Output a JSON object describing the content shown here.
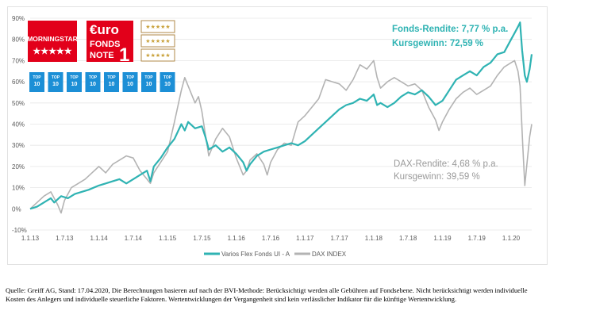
{
  "chart_data": {
    "type": "line",
    "title": "",
    "xlabel": "",
    "ylabel": "",
    "ylim": [
      -10,
      90
    ],
    "grid": true,
    "legend_position": "bottom",
    "y_ticks": [
      -10,
      0,
      10,
      20,
      30,
      40,
      50,
      60,
      70,
      80,
      90
    ],
    "y_tick_labels": [
      "-10%",
      "0%",
      "10%",
      "20%",
      "30%",
      "40%",
      "50%",
      "60%",
      "70%",
      "80%",
      "90%"
    ],
    "x_tick_labels": [
      "1.1.13",
      "1.7.13",
      "1.1.14",
      "1.7.14",
      "1.1.15",
      "1.7.15",
      "1.1.16",
      "1.7.16",
      "1.1.17",
      "1.7.17",
      "1.1.18",
      "1.7.18",
      "1.1.19",
      "1.7.19",
      "1.1.20"
    ],
    "x_ticks": [
      2013.0,
      2013.5,
      2014.0,
      2014.5,
      2015.0,
      2015.5,
      2016.0,
      2016.5,
      2017.0,
      2017.5,
      2018.0,
      2018.5,
      2019.0,
      2019.5,
      2020.0
    ],
    "xlim": [
      2013.0,
      2020.3
    ],
    "series": [
      {
        "name": "Varios Flex Fonds UI - A",
        "color": "#2fb3b3",
        "points": [
          [
            2013.0,
            0
          ],
          [
            2013.1,
            1
          ],
          [
            2013.2,
            3
          ],
          [
            2013.3,
            5
          ],
          [
            2013.35,
            3
          ],
          [
            2013.45,
            6
          ],
          [
            2013.55,
            5
          ],
          [
            2013.65,
            7
          ],
          [
            2013.75,
            8
          ],
          [
            2013.85,
            9
          ],
          [
            2014.0,
            11
          ],
          [
            2014.1,
            12
          ],
          [
            2014.2,
            13
          ],
          [
            2014.3,
            14
          ],
          [
            2014.4,
            12
          ],
          [
            2014.5,
            14
          ],
          [
            2014.6,
            16
          ],
          [
            2014.7,
            18
          ],
          [
            2014.75,
            13
          ],
          [
            2014.8,
            20
          ],
          [
            2014.9,
            24
          ],
          [
            2015.0,
            29
          ],
          [
            2015.1,
            33
          ],
          [
            2015.2,
            40
          ],
          [
            2015.25,
            37
          ],
          [
            2015.3,
            41
          ],
          [
            2015.4,
            38
          ],
          [
            2015.5,
            39
          ],
          [
            2015.55,
            34
          ],
          [
            2015.6,
            28
          ],
          [
            2015.7,
            30
          ],
          [
            2015.8,
            27
          ],
          [
            2015.9,
            29
          ],
          [
            2016.0,
            26
          ],
          [
            2016.1,
            22
          ],
          [
            2016.15,
            18
          ],
          [
            2016.2,
            21
          ],
          [
            2016.3,
            25
          ],
          [
            2016.4,
            27
          ],
          [
            2016.5,
            28
          ],
          [
            2016.6,
            29
          ],
          [
            2016.7,
            30
          ],
          [
            2016.8,
            31
          ],
          [
            2016.9,
            30
          ],
          [
            2017.0,
            32
          ],
          [
            2017.1,
            35
          ],
          [
            2017.2,
            38
          ],
          [
            2017.3,
            41
          ],
          [
            2017.4,
            44
          ],
          [
            2017.5,
            47
          ],
          [
            2017.6,
            49
          ],
          [
            2017.7,
            50
          ],
          [
            2017.8,
            52
          ],
          [
            2017.9,
            51
          ],
          [
            2018.0,
            54
          ],
          [
            2018.05,
            49
          ],
          [
            2018.1,
            50
          ],
          [
            2018.2,
            48
          ],
          [
            2018.3,
            50
          ],
          [
            2018.4,
            53
          ],
          [
            2018.5,
            55
          ],
          [
            2018.6,
            54
          ],
          [
            2018.7,
            56
          ],
          [
            2018.8,
            53
          ],
          [
            2018.9,
            49
          ],
          [
            2019.0,
            51
          ],
          [
            2019.1,
            56
          ],
          [
            2019.2,
            61
          ],
          [
            2019.3,
            63
          ],
          [
            2019.4,
            65
          ],
          [
            2019.5,
            63
          ],
          [
            2019.6,
            67
          ],
          [
            2019.7,
            69
          ],
          [
            2019.8,
            73
          ],
          [
            2019.9,
            74
          ],
          [
            2020.0,
            80
          ],
          [
            2020.05,
            83
          ],
          [
            2020.1,
            86
          ],
          [
            2020.13,
            88
          ],
          [
            2020.16,
            75
          ],
          [
            2020.2,
            63
          ],
          [
            2020.23,
            60
          ],
          [
            2020.27,
            66
          ],
          [
            2020.3,
            73
          ]
        ]
      },
      {
        "name": "DAX INDEX",
        "color": "#b3b3b3",
        "points": [
          [
            2013.0,
            0
          ],
          [
            2013.1,
            3
          ],
          [
            2013.2,
            6
          ],
          [
            2013.3,
            8
          ],
          [
            2013.4,
            2
          ],
          [
            2013.45,
            -2
          ],
          [
            2013.5,
            4
          ],
          [
            2013.6,
            10
          ],
          [
            2013.7,
            12
          ],
          [
            2013.8,
            14
          ],
          [
            2013.9,
            17
          ],
          [
            2014.0,
            20
          ],
          [
            2014.1,
            17
          ],
          [
            2014.2,
            21
          ],
          [
            2014.3,
            23
          ],
          [
            2014.4,
            25
          ],
          [
            2014.5,
            24
          ],
          [
            2014.6,
            18
          ],
          [
            2014.7,
            14
          ],
          [
            2014.75,
            12
          ],
          [
            2014.8,
            17
          ],
          [
            2014.9,
            22
          ],
          [
            2015.0,
            27
          ],
          [
            2015.1,
            41
          ],
          [
            2015.2,
            56
          ],
          [
            2015.25,
            62
          ],
          [
            2015.3,
            58
          ],
          [
            2015.4,
            50
          ],
          [
            2015.45,
            53
          ],
          [
            2015.5,
            46
          ],
          [
            2015.55,
            35
          ],
          [
            2015.6,
            25
          ],
          [
            2015.7,
            33
          ],
          [
            2015.8,
            38
          ],
          [
            2015.9,
            34
          ],
          [
            2016.0,
            24
          ],
          [
            2016.1,
            16
          ],
          [
            2016.15,
            18
          ],
          [
            2016.2,
            23
          ],
          [
            2016.3,
            26
          ],
          [
            2016.4,
            21
          ],
          [
            2016.45,
            16
          ],
          [
            2016.5,
            22
          ],
          [
            2016.6,
            28
          ],
          [
            2016.7,
            31
          ],
          [
            2016.8,
            30
          ],
          [
            2016.9,
            41
          ],
          [
            2017.0,
            44
          ],
          [
            2017.1,
            48
          ],
          [
            2017.2,
            52
          ],
          [
            2017.3,
            61
          ],
          [
            2017.4,
            60
          ],
          [
            2017.5,
            59
          ],
          [
            2017.6,
            56
          ],
          [
            2017.7,
            61
          ],
          [
            2017.8,
            68
          ],
          [
            2017.9,
            66
          ],
          [
            2018.0,
            70
          ],
          [
            2018.05,
            62
          ],
          [
            2018.1,
            57
          ],
          [
            2018.2,
            60
          ],
          [
            2018.3,
            62
          ],
          [
            2018.4,
            60
          ],
          [
            2018.5,
            58
          ],
          [
            2018.6,
            59
          ],
          [
            2018.7,
            56
          ],
          [
            2018.8,
            48
          ],
          [
            2018.9,
            42
          ],
          [
            2018.95,
            37
          ],
          [
            2019.0,
            41
          ],
          [
            2019.1,
            47
          ],
          [
            2019.2,
            52
          ],
          [
            2019.3,
            55
          ],
          [
            2019.4,
            57
          ],
          [
            2019.5,
            54
          ],
          [
            2019.6,
            56
          ],
          [
            2019.7,
            58
          ],
          [
            2019.8,
            63
          ],
          [
            2019.9,
            67
          ],
          [
            2020.0,
            69
          ],
          [
            2020.05,
            70
          ],
          [
            2020.1,
            65
          ],
          [
            2020.13,
            58
          ],
          [
            2020.17,
            30
          ],
          [
            2020.2,
            11
          ],
          [
            2020.23,
            21
          ],
          [
            2020.27,
            34
          ],
          [
            2020.3,
            40
          ]
        ]
      }
    ],
    "annotations": [
      {
        "line1": "Fonds-Rendite: 7,77 % p.a.",
        "line2": "Kursgewinn: 72,59 %",
        "color": "#2fb3b3"
      },
      {
        "line1": "DAX-Rendite: 4,68 % p.a.",
        "line2": "Kursgewinn: 39,59 %",
        "color": "#9a9a9a"
      }
    ]
  },
  "badges": {
    "morningstar": {
      "text": "MORNINGSTAR",
      "stars": "★★★★★",
      "color": "#e2001a"
    },
    "euro": {
      "brand": "€uro",
      "line1": "FONDS",
      "line2": "NOTE",
      "grade": "1",
      "color": "#e2001a"
    },
    "small_ratings": [
      {
        "stars": "★★★★★"
      },
      {
        "stars": "★★★★★"
      },
      {
        "stars": "★★★★★"
      }
    ],
    "top10": [
      {
        "line1": "TOP",
        "line2": "10",
        "color": "#1c8fd6"
      },
      {
        "line1": "TOP",
        "line2": "10",
        "color": "#1c8fd6"
      },
      {
        "line1": "TOP",
        "line2": "10",
        "color": "#1c8fd6"
      },
      {
        "line1": "TOP",
        "line2": "10",
        "color": "#1c8fd6"
      },
      {
        "line1": "TOP",
        "line2": "10",
        "color": "#1c8fd6"
      },
      {
        "line1": "TOP",
        "line2": "10",
        "color": "#1c8fd6"
      },
      {
        "line1": "TOP",
        "line2": "10",
        "color": "#1c8fd6"
      },
      {
        "line1": "TOP",
        "line2": "10",
        "color": "#1c8fd6"
      }
    ]
  },
  "source_note": "Quelle: Greiff AG, Stand: 17.04.2020, Die Berechnungen basieren auf nach der BVI-Methode: Berücksichtigt werden alle Gebühren auf Fondsebene. Nicht berücksichtigt werden individuelle Kosten des Anlegers und individuelle steuerliche Faktoren. Wertentwicklungen der Vergangenheit sind kein verlässlicher Indikator für die künftige Wertentwicklung."
}
